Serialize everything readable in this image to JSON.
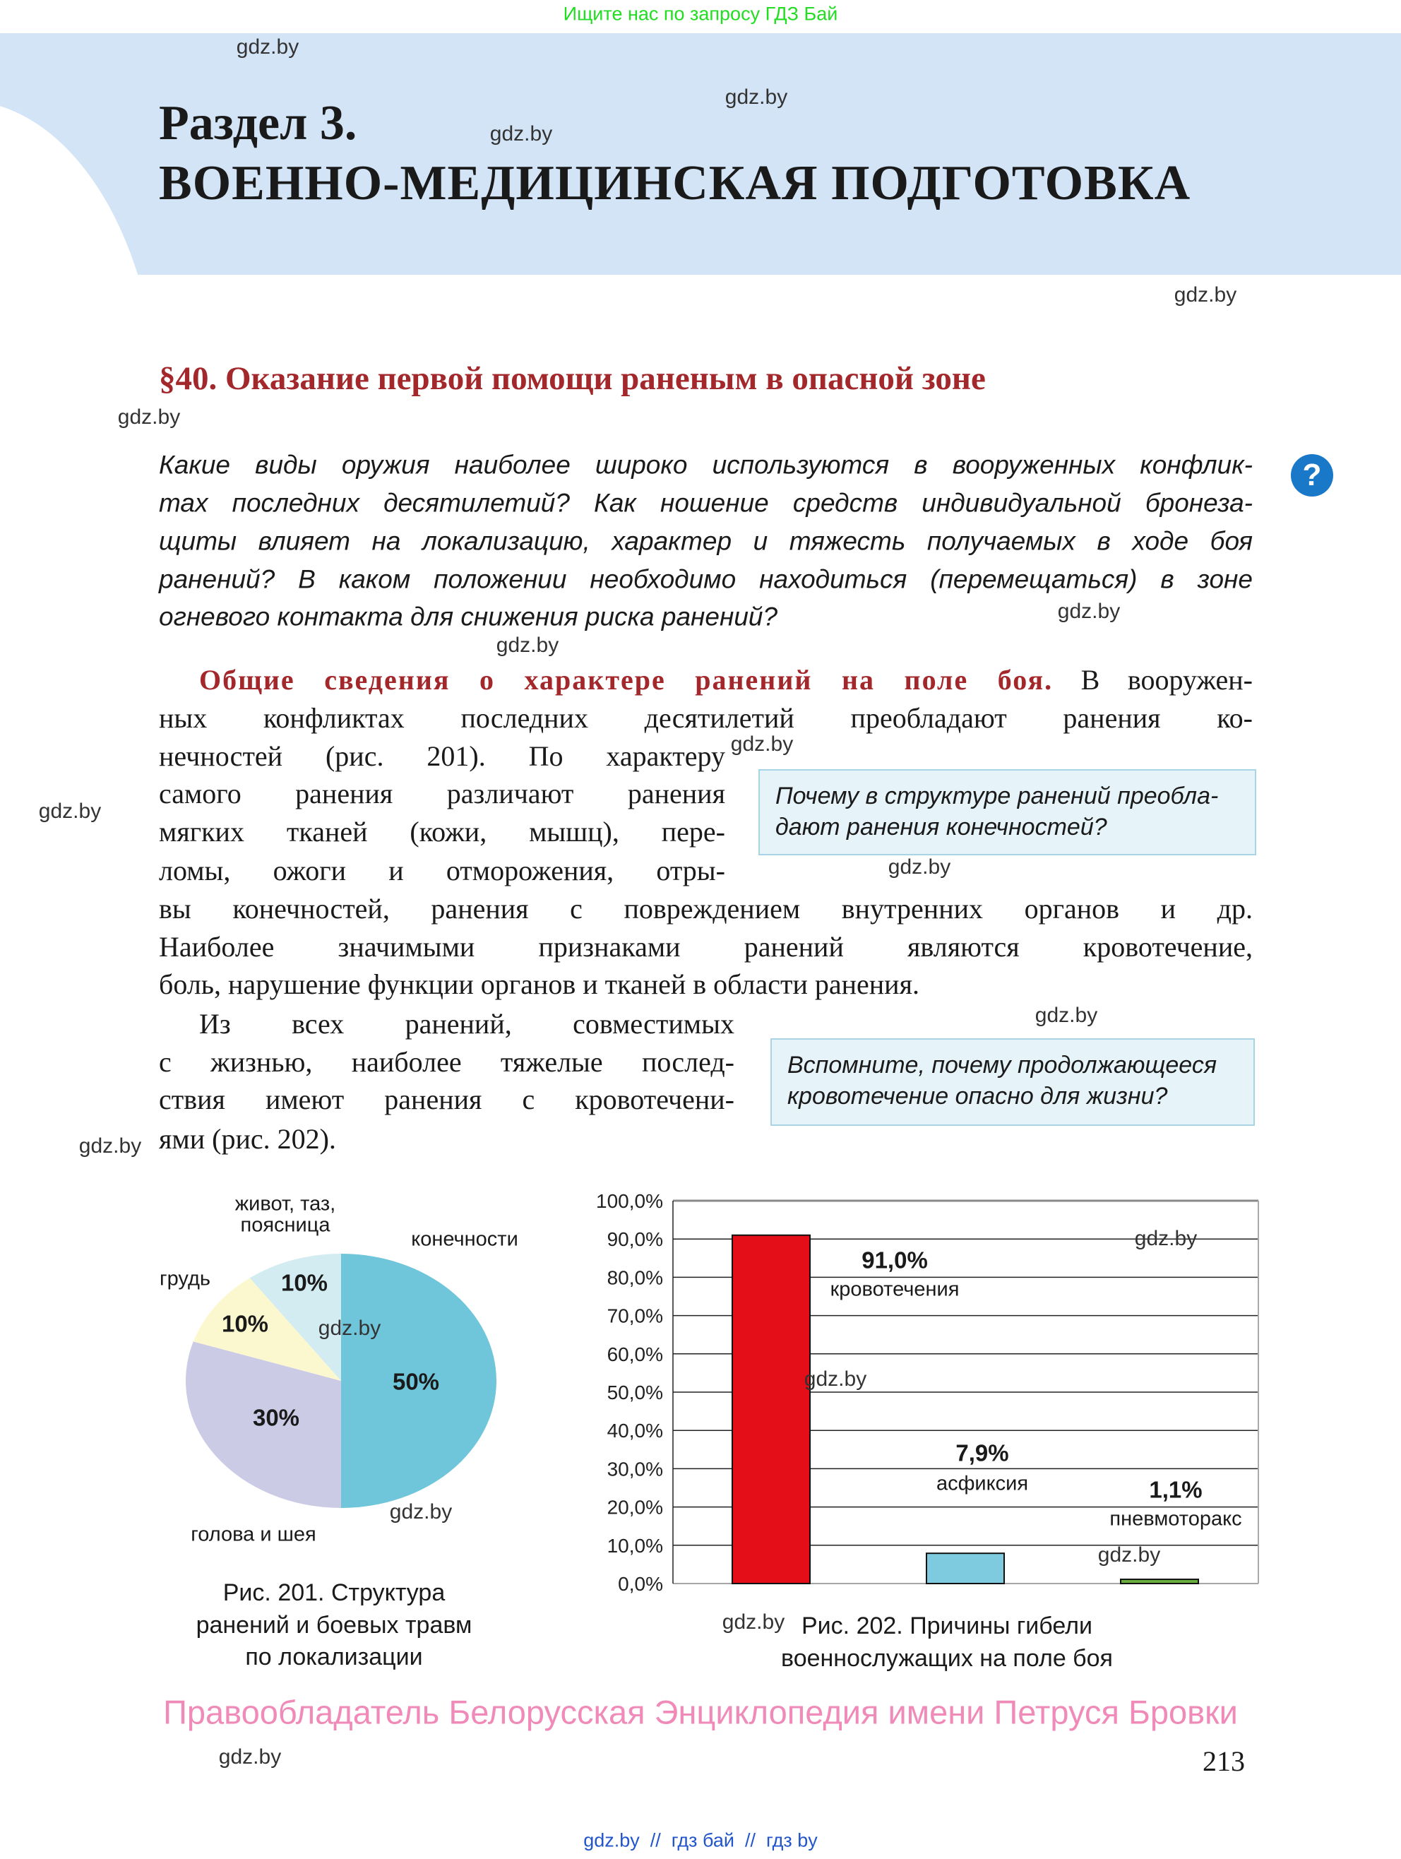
{
  "top_note": "Ищите нас по запросу ГДЗ Бай",
  "header": {
    "section": "Раздел 3.",
    "section_title": "ВОЕННО-МЕДИЦИНСКАЯ ПОДГОТОВКА"
  },
  "paragraph_title": "§40. Оказание первой помощи раненым в опасной зоне",
  "questions": [
    "Какие виды оружия наиболее широко используются в вооруженных конфлик-",
    "тах последних десятилетий? Как ношение средств индивидуальной бронеза-",
    "щиты влияет на локализацию, характер и тяжесть получаемых в ходе боя",
    "ранений? В каком положении необходимо находиться (перемещаться) в зоне",
    "огневого контакта для снижения риска ранений?"
  ],
  "question_icon": "question-circle-icon",
  "body": {
    "heading": "Общие сведения о характере ранений на поле боя.",
    "lines": [
      " В вооружен-",
      "ных конфликтах последних десятилетий преобладают ранения ко-",
      "нечностей (рис. 201). По характеру",
      "самого ранения различают ранения",
      "мягких тканей (кожи, мышц), пере-",
      "ломы, ожоги и отморожения, отры-",
      "вы конечностей, ранения с повреждением внутренних органов и др.",
      "Наиболее значимыми признаками ранений являются кровотечение,",
      "боль, нарушение функции органов и тканей в области ранения.",
      "Из всех ранений, совместимых",
      "с жизнью, наиболее тяжелые послед-",
      "ствия имеют ранения с кровотечени-",
      "ями (рис. 202)."
    ]
  },
  "callouts": [
    {
      "text": "Почему в структуре ранений преобла-дают ранения конечностей?"
    },
    {
      "text": "Вспомните, почему продолжающееся кровотечение опасно для жизни?"
    }
  ],
  "watermark": "gdz.by",
  "chart_data": [
    {
      "type": "pie",
      "slices": [
        {
          "label": "конечности",
          "value": 50,
          "value_label": "50%",
          "color": "#6fc5d9"
        },
        {
          "label": "голова и шея",
          "value": 30,
          "value_label": "30%",
          "color": "#cccbe6"
        },
        {
          "label": "грудь",
          "value": 10,
          "value_label": "10%",
          "color": "#fbf8cf"
        },
        {
          "label": "живот, таз, поясница",
          "value": 10,
          "value_label": "10%",
          "color": "#d3ecf2"
        }
      ],
      "caption": [
        "Рис. 201. Структура",
        "ранений и боевых травм",
        "по локализации"
      ]
    },
    {
      "type": "bar",
      "categories": [
        "кровотечения",
        "асфиксия",
        "пневмоторакс"
      ],
      "values": [
        91.0,
        7.9,
        1.1
      ],
      "value_labels": [
        "91,0%",
        "7,9%",
        "1,1%"
      ],
      "colors": [
        "#e30e17",
        "#7ecbdf",
        "#6aaf3d"
      ],
      "ylim": [
        0,
        100
      ],
      "yticks": [
        "0,0%",
        "10,0%",
        "20,0%",
        "30,0%",
        "40,0%",
        "50,0%",
        "60,0%",
        "70,0%",
        "80,0%",
        "90,0%",
        "100,0%"
      ],
      "grid": true,
      "caption": [
        "Рис. 202. Причины гибели",
        "военнослужащих на поле боя"
      ]
    }
  ],
  "footer": {
    "copyright": "Правообладатель Белорусская Энциклопедия имени Петруся Бровки",
    "page_number": "213",
    "links": "gdz.by  //  гдз бай  //  гдз by"
  }
}
